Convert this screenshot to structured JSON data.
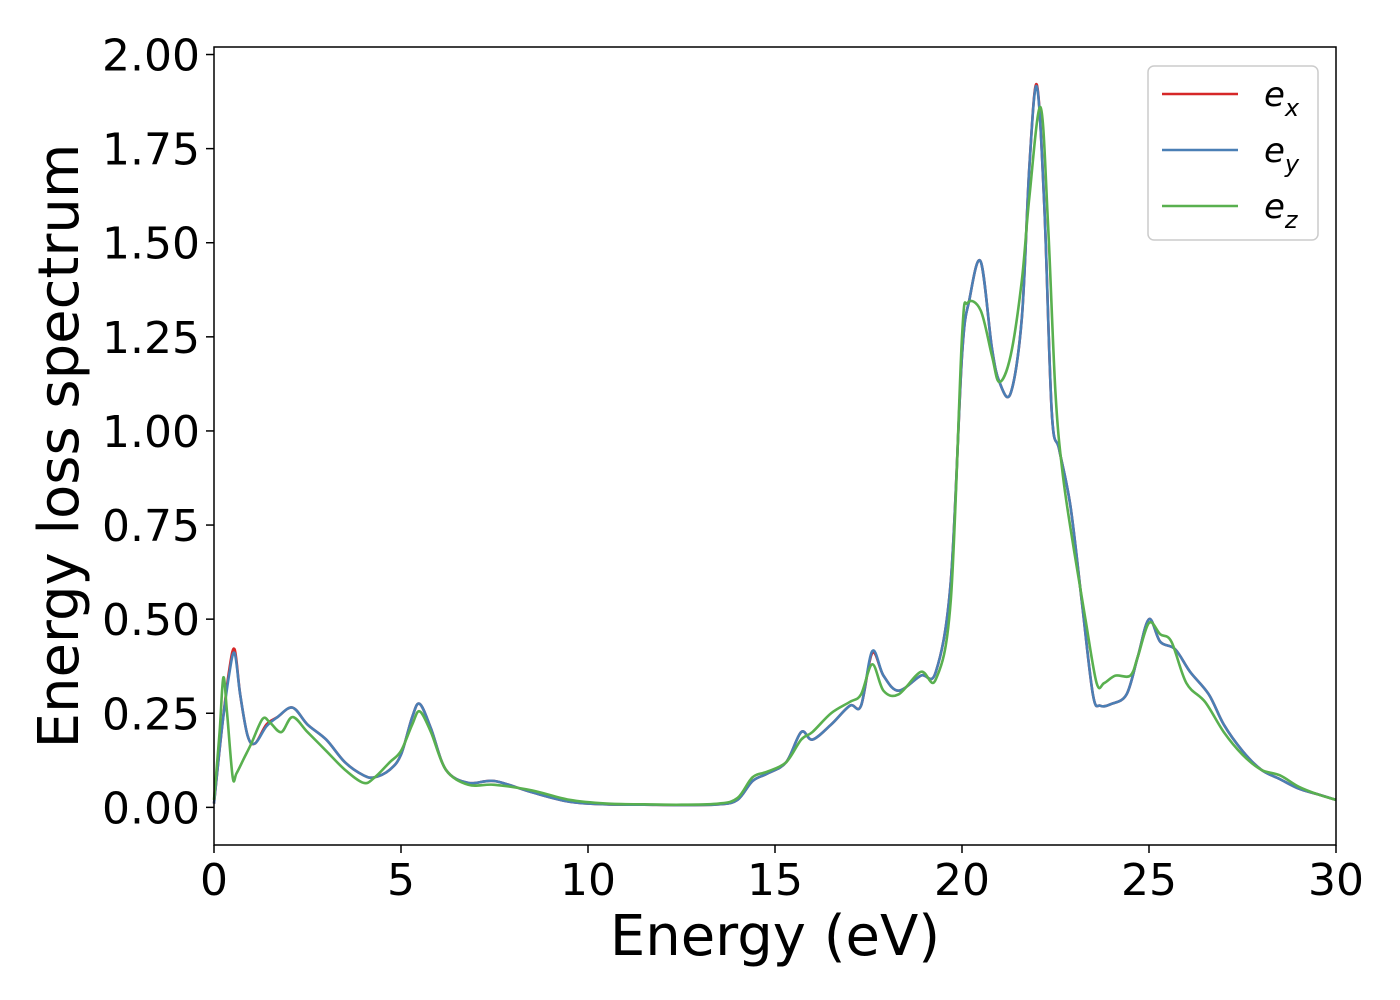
{
  "chart_data": {
    "type": "line",
    "xlabel": "Energy (eV)",
    "ylabel": "Energy loss spectrum",
    "xlim": [
      0,
      30
    ],
    "ylim": [
      -0.1,
      2.02
    ],
    "xticks": [
      "0",
      "5",
      "10",
      "15",
      "20",
      "25",
      "30"
    ],
    "yticks": [
      "0.00",
      "0.25",
      "0.50",
      "0.75",
      "1.00",
      "1.25",
      "1.50",
      "1.75",
      "2.00"
    ],
    "grid": false,
    "legend_position": "top-right",
    "series": [
      {
        "name": "e_x",
        "base": "e",
        "sub": "x",
        "color": "#d62728",
        "x": [
          0,
          0.2,
          0.4,
          0.55,
          0.7,
          0.9,
          1.1,
          1.4,
          1.7,
          2.1,
          2.5,
          3.0,
          3.5,
          4.0,
          4.3,
          4.7,
          5.0,
          5.3,
          5.5,
          5.8,
          6.2,
          6.8,
          7.5,
          8.5,
          9.5,
          10.5,
          11.5,
          12.5,
          13.5,
          14.0,
          14.4,
          14.8,
          15.3,
          15.7,
          16.0,
          16.5,
          17.0,
          17.3,
          17.6,
          17.9,
          18.3,
          18.9,
          19.3,
          19.7,
          20.0,
          20.2,
          20.5,
          20.8,
          21.0,
          21.3,
          21.6,
          21.8,
          22.0,
          22.2,
          22.4,
          22.6,
          22.9,
          23.2,
          23.5,
          23.7,
          24.0,
          24.4,
          24.7,
          25.0,
          25.3,
          25.7,
          26.1,
          26.6,
          27.0,
          27.5,
          28.0,
          28.5,
          29.0,
          29.5,
          30.0
        ],
        "values": [
          0.01,
          0.2,
          0.36,
          0.42,
          0.3,
          0.19,
          0.17,
          0.22,
          0.24,
          0.265,
          0.22,
          0.18,
          0.12,
          0.085,
          0.08,
          0.1,
          0.14,
          0.24,
          0.275,
          0.21,
          0.1,
          0.065,
          0.07,
          0.04,
          0.015,
          0.008,
          0.007,
          0.006,
          0.008,
          0.02,
          0.07,
          0.09,
          0.12,
          0.2,
          0.18,
          0.22,
          0.27,
          0.27,
          0.41,
          0.35,
          0.31,
          0.35,
          0.36,
          0.6,
          1.2,
          1.35,
          1.45,
          1.22,
          1.13,
          1.1,
          1.3,
          1.7,
          1.92,
          1.6,
          1.05,
          0.95,
          0.8,
          0.55,
          0.3,
          0.27,
          0.275,
          0.3,
          0.4,
          0.5,
          0.44,
          0.42,
          0.36,
          0.3,
          0.22,
          0.15,
          0.1,
          0.075,
          0.05,
          0.035,
          0.02
        ]
      },
      {
        "name": "e_y",
        "base": "e",
        "sub": "y",
        "color": "#4a7fb5",
        "x": [
          0,
          0.2,
          0.4,
          0.55,
          0.7,
          0.9,
          1.1,
          1.4,
          1.7,
          2.1,
          2.5,
          3.0,
          3.5,
          4.0,
          4.3,
          4.7,
          5.0,
          5.3,
          5.5,
          5.8,
          6.2,
          6.8,
          7.5,
          8.5,
          9.5,
          10.5,
          11.5,
          12.5,
          13.5,
          14.0,
          14.4,
          14.8,
          15.3,
          15.7,
          16.0,
          16.5,
          17.0,
          17.3,
          17.6,
          17.9,
          18.3,
          18.9,
          19.3,
          19.7,
          20.0,
          20.2,
          20.5,
          20.8,
          21.0,
          21.3,
          21.6,
          21.8,
          22.0,
          22.2,
          22.4,
          22.6,
          22.9,
          23.2,
          23.5,
          23.7,
          24.0,
          24.4,
          24.7,
          25.0,
          25.3,
          25.7,
          26.1,
          26.6,
          27.0,
          27.5,
          28.0,
          28.5,
          29.0,
          29.5,
          30.0
        ],
        "values": [
          0.01,
          0.2,
          0.35,
          0.41,
          0.3,
          0.19,
          0.17,
          0.215,
          0.24,
          0.265,
          0.22,
          0.18,
          0.12,
          0.085,
          0.08,
          0.1,
          0.14,
          0.24,
          0.275,
          0.21,
          0.1,
          0.065,
          0.07,
          0.04,
          0.015,
          0.008,
          0.007,
          0.006,
          0.008,
          0.02,
          0.07,
          0.09,
          0.12,
          0.2,
          0.18,
          0.22,
          0.27,
          0.27,
          0.415,
          0.35,
          0.31,
          0.35,
          0.36,
          0.6,
          1.2,
          1.35,
          1.45,
          1.22,
          1.13,
          1.1,
          1.3,
          1.7,
          1.915,
          1.6,
          1.05,
          0.95,
          0.8,
          0.55,
          0.3,
          0.27,
          0.275,
          0.3,
          0.4,
          0.5,
          0.44,
          0.42,
          0.36,
          0.3,
          0.22,
          0.15,
          0.1,
          0.075,
          0.05,
          0.035,
          0.02
        ]
      },
      {
        "name": "e_z",
        "base": "e",
        "sub": "z",
        "color": "#59b04f",
        "x": [
          0,
          0.15,
          0.25,
          0.35,
          0.5,
          0.6,
          0.8,
          1.0,
          1.3,
          1.5,
          1.8,
          2.1,
          2.5,
          3.0,
          3.5,
          4.0,
          4.3,
          4.7,
          5.0,
          5.3,
          5.5,
          5.8,
          6.2,
          6.8,
          7.5,
          8.5,
          9.5,
          10.5,
          11.5,
          12.5,
          13.5,
          14.0,
          14.4,
          14.8,
          15.3,
          15.7,
          16.0,
          16.5,
          17.0,
          17.3,
          17.6,
          17.9,
          18.3,
          18.9,
          19.3,
          19.7,
          20.0,
          20.15,
          20.5,
          20.8,
          21.0,
          21.3,
          21.6,
          21.8,
          22.1,
          22.3,
          22.5,
          22.7,
          23.0,
          23.3,
          23.6,
          23.8,
          24.1,
          24.5,
          24.7,
          25.0,
          25.3,
          25.6,
          26.0,
          26.5,
          27.0,
          27.5,
          28.0,
          28.5,
          29.0,
          29.5,
          30.0
        ],
        "values": [
          0.02,
          0.2,
          0.345,
          0.25,
          0.08,
          0.09,
          0.13,
          0.17,
          0.235,
          0.225,
          0.2,
          0.24,
          0.2,
          0.15,
          0.1,
          0.065,
          0.08,
          0.12,
          0.15,
          0.22,
          0.255,
          0.2,
          0.1,
          0.06,
          0.06,
          0.045,
          0.02,
          0.01,
          0.008,
          0.007,
          0.01,
          0.025,
          0.08,
          0.095,
          0.12,
          0.18,
          0.2,
          0.25,
          0.28,
          0.3,
          0.38,
          0.31,
          0.3,
          0.36,
          0.34,
          0.55,
          1.25,
          1.34,
          1.32,
          1.2,
          1.13,
          1.2,
          1.4,
          1.62,
          1.86,
          1.55,
          1.1,
          0.88,
          0.68,
          0.5,
          0.33,
          0.33,
          0.35,
          0.35,
          0.4,
          0.49,
          0.46,
          0.44,
          0.33,
          0.28,
          0.2,
          0.14,
          0.1,
          0.085,
          0.055,
          0.035,
          0.02
        ]
      }
    ]
  }
}
